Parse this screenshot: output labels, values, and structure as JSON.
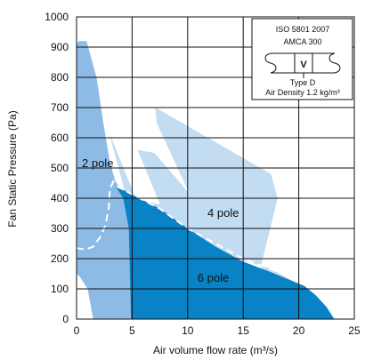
{
  "chart_data": {
    "type": "area",
    "xlabel": "Air volume flow rate (m³/s)",
    "ylabel": "Fan Static Pressure (Pa)",
    "xlim": [
      0,
      25
    ],
    "ylim": [
      0,
      1000
    ],
    "x_ticks": [
      "0",
      "5",
      "10",
      "15",
      "20",
      "25"
    ],
    "y_ticks": [
      "0",
      "100",
      "200",
      "300",
      "400",
      "500",
      "600",
      "700",
      "800",
      "900",
      "1000"
    ],
    "grid": true,
    "colors": {
      "two_pole": "#8dbbe6",
      "four_pole": "#c2dcf2",
      "six_pole": "#0a82c6",
      "dashed": "#ffffff"
    },
    "series": [
      {
        "name": "2 pole",
        "label_at": [
          1.9,
          515
        ],
        "polygon": [
          [
            0.2,
            920
          ],
          [
            0.9,
            920
          ],
          [
            1.8,
            800
          ],
          [
            2.4,
            650
          ],
          [
            3.0,
            520
          ],
          [
            3.5,
            455
          ],
          [
            4.1,
            425
          ],
          [
            4.7,
            340
          ],
          [
            5.1,
            150
          ],
          [
            5.3,
            0
          ],
          [
            1.5,
            0
          ],
          [
            1.0,
            100
          ],
          [
            0.3,
            140
          ],
          [
            0.0,
            150
          ],
          [
            0.0,
            910
          ]
        ]
      },
      {
        "name": "4 pole",
        "label_at": [
          13.2,
          350
        ],
        "polygon": [
          [
            2.9,
            620
          ],
          [
            7.7,
            185
          ],
          [
            9.6,
            255
          ],
          [
            12.0,
            225
          ],
          [
            17.3,
            170
          ],
          [
            19.5,
            125
          ],
          [
            20.5,
            100
          ],
          [
            19.9,
            0
          ],
          [
            15.4,
            0
          ],
          [
            17.1,
            250
          ],
          [
            18.1,
            400
          ],
          [
            17.5,
            480
          ],
          [
            7.1,
            700
          ],
          [
            7.2,
            650
          ],
          [
            10.1,
            420
          ],
          [
            10.3,
            410
          ],
          [
            7.0,
            550
          ],
          [
            5.5,
            560
          ],
          [
            7.5,
            380
          ],
          [
            4.5,
            400
          ]
        ]
      },
      {
        "name": "6 pole",
        "label_at": [
          12.3,
          135
        ],
        "polygon": [
          [
            3.5,
            440
          ],
          [
            7.5,
            365
          ],
          [
            10.0,
            300
          ],
          [
            12.5,
            240
          ],
          [
            15.0,
            190
          ],
          [
            17.5,
            155
          ],
          [
            20.5,
            110
          ],
          [
            21.5,
            80
          ],
          [
            22.5,
            40
          ],
          [
            23.2,
            0
          ],
          [
            4.9,
            0
          ],
          [
            4.8,
            150
          ],
          [
            4.7,
            300
          ],
          [
            4.2,
            400
          ]
        ]
      }
    ],
    "dashed_line": [
      [
        0.0,
        235
      ],
      [
        0.8,
        230
      ],
      [
        1.5,
        240
      ],
      [
        2.1,
        270
      ],
      [
        2.6,
        310
      ],
      [
        2.9,
        370
      ],
      [
        3.0,
        430
      ],
      [
        3.3,
        455
      ],
      [
        3.6,
        440
      ],
      [
        7.5,
        365
      ],
      [
        10.0,
        300
      ],
      [
        12.5,
        250
      ],
      [
        15.0,
        200
      ],
      [
        17.5,
        165
      ],
      [
        20.5,
        120
      ]
    ],
    "legend": {
      "line1": "ISO 5801 2007",
      "line2": "AMCA 300",
      "symbol": "V",
      "line3": "Type D",
      "line4": "Air Density 1.2 kg/m³"
    }
  }
}
